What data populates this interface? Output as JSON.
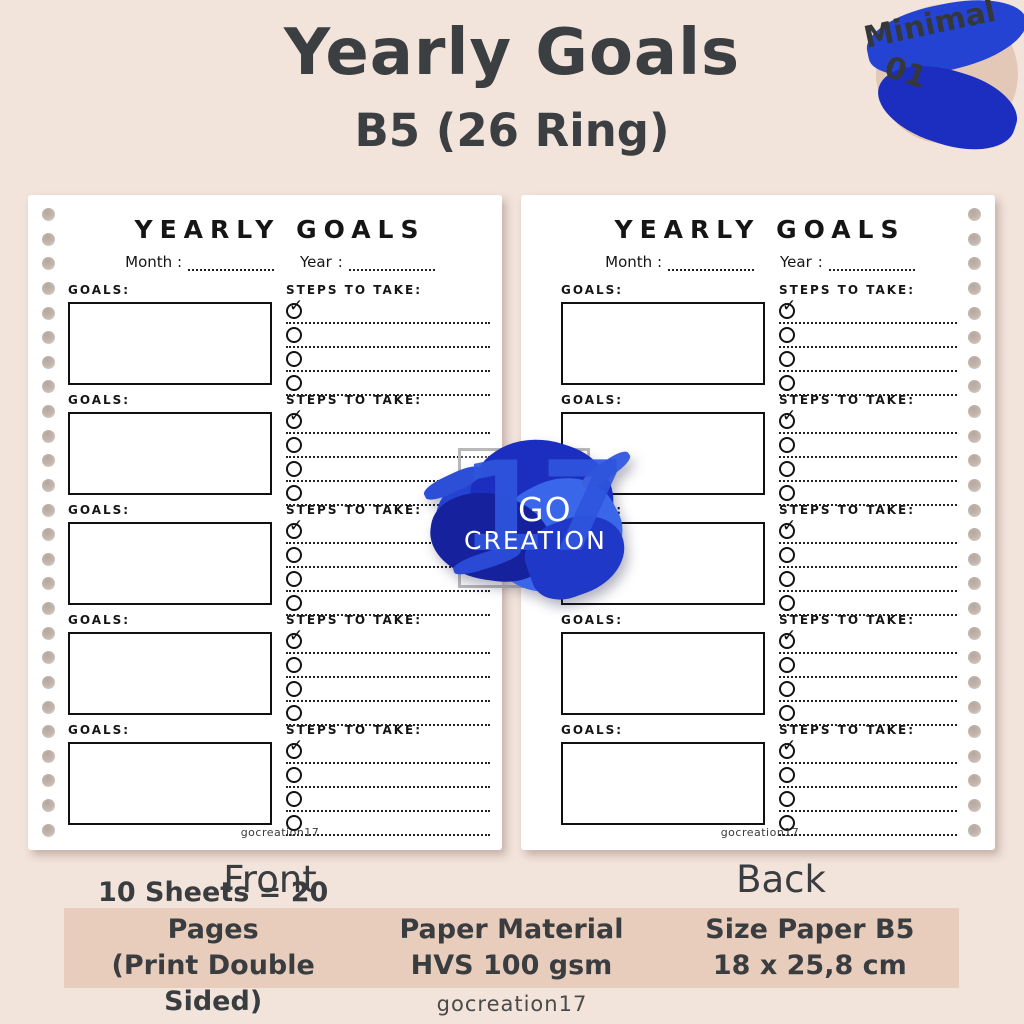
{
  "page": {
    "title": "Yearly Goals",
    "subtitle": "B5 (26 Ring)",
    "badge": {
      "line1": "Minimal",
      "line2": "01"
    },
    "front_label": "Front",
    "back_label": "Back",
    "footer": "gocreation17",
    "info_bar": [
      {
        "line1": "10 Sheets = 20 Pages",
        "line2": "(Print Double Sided)"
      },
      {
        "line1": "Paper Material",
        "line2": "HVS 100 gsm"
      },
      {
        "line1": "Size Paper B5",
        "line2": "18 x 25,8 cm"
      }
    ]
  },
  "sheet": {
    "header": "YEARLY GOALS",
    "month_label": "Month :",
    "year_label": "Year",
    "year_colon": ":",
    "goals_label": "GOALS:",
    "steps_label": "STEPS TO TAKE:",
    "rows": 5,
    "steps_per_row": 4,
    "hole_count": 26,
    "credit": "gocreation17"
  },
  "watermark": {
    "number": "17",
    "line1": "GO",
    "line2": "CREATION"
  },
  "colors": {
    "background": "#f2e4db",
    "badge": "#e4c8b7",
    "info_bar": "#e9cdbc",
    "ink": "#151515",
    "heading": "#3c3f42",
    "watermark_blue": "#2543d2",
    "sheet": "#ffffff"
  }
}
